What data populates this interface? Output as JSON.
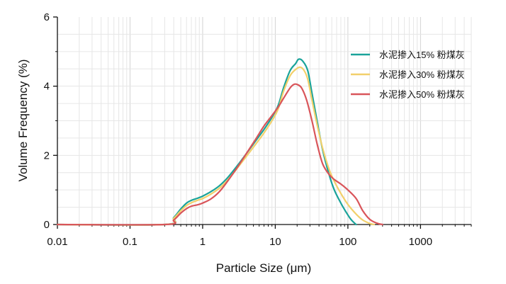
{
  "chart_data": {
    "type": "line",
    "xlabel": "Particle Size (μm)",
    "ylabel": "Volume Frequency (%)",
    "x_scale": "log",
    "xlim": [
      0.01,
      5000
    ],
    "ylim": [
      0,
      6
    ],
    "x_ticks": [
      {
        "value": 0.01,
        "label": "0.01"
      },
      {
        "value": 0.1,
        "label": "0.1"
      },
      {
        "value": 1,
        "label": "1"
      },
      {
        "value": 10,
        "label": "10"
      },
      {
        "value": 100,
        "label": "100"
      },
      {
        "value": 1000,
        "label": "1000"
      }
    ],
    "y_ticks": [
      {
        "value": 0,
        "label": "0"
      },
      {
        "value": 2,
        "label": "2"
      },
      {
        "value": 4,
        "label": "4"
      },
      {
        "value": 6,
        "label": "6"
      }
    ],
    "grid": true,
    "legend_position": "top-right",
    "series": [
      {
        "name": "水泥掺入15% 粉煤灰",
        "color": "#1aa39a",
        "points": [
          [
            0.01,
            0
          ],
          [
            0.3,
            0
          ],
          [
            0.4,
            0.2
          ],
          [
            0.5,
            0.45
          ],
          [
            0.6,
            0.62
          ],
          [
            0.7,
            0.7
          ],
          [
            0.85,
            0.76
          ],
          [
            1,
            0.82
          ],
          [
            1.3,
            0.95
          ],
          [
            1.7,
            1.12
          ],
          [
            2.2,
            1.35
          ],
          [
            3,
            1.7
          ],
          [
            4,
            2.05
          ],
          [
            5.5,
            2.45
          ],
          [
            7,
            2.75
          ],
          [
            9,
            3.1
          ],
          [
            11,
            3.45
          ],
          [
            13,
            3.95
          ],
          [
            16,
            4.45
          ],
          [
            19,
            4.65
          ],
          [
            21,
            4.78
          ],
          [
            24,
            4.72
          ],
          [
            28,
            4.45
          ],
          [
            32,
            3.8
          ],
          [
            38,
            2.95
          ],
          [
            45,
            2.15
          ],
          [
            55,
            1.45
          ],
          [
            65,
            1.0
          ],
          [
            80,
            0.62
          ],
          [
            95,
            0.35
          ],
          [
            110,
            0.15
          ],
          [
            125,
            0.03
          ],
          [
            130,
            0
          ]
        ]
      },
      {
        "name": "水泥掺入30% 粉煤灰",
        "color": "#f2d06b",
        "points": [
          [
            0.01,
            0
          ],
          [
            0.3,
            0
          ],
          [
            0.4,
            0.18
          ],
          [
            0.5,
            0.4
          ],
          [
            0.6,
            0.55
          ],
          [
            0.7,
            0.63
          ],
          [
            0.85,
            0.7
          ],
          [
            1,
            0.75
          ],
          [
            1.3,
            0.88
          ],
          [
            1.7,
            1.05
          ],
          [
            2.2,
            1.28
          ],
          [
            3,
            1.63
          ],
          [
            4,
            1.97
          ],
          [
            5.5,
            2.35
          ],
          [
            7,
            2.65
          ],
          [
            9,
            3.0
          ],
          [
            11,
            3.35
          ],
          [
            13,
            3.85
          ],
          [
            16,
            4.3
          ],
          [
            19,
            4.48
          ],
          [
            22,
            4.55
          ],
          [
            25,
            4.45
          ],
          [
            28,
            4.2
          ],
          [
            32,
            3.6
          ],
          [
            38,
            2.85
          ],
          [
            45,
            2.2
          ],
          [
            55,
            1.6
          ],
          [
            65,
            1.25
          ],
          [
            80,
            0.9
          ],
          [
            100,
            0.58
          ],
          [
            130,
            0.3
          ],
          [
            160,
            0.13
          ],
          [
            200,
            0.03
          ],
          [
            230,
            0
          ]
        ]
      },
      {
        "name": "水泥掺入50% 粉煤灰",
        "color": "#d9555a",
        "points": [
          [
            0.01,
            0
          ],
          [
            0.3,
            0
          ],
          [
            0.4,
            0.13
          ],
          [
            0.5,
            0.33
          ],
          [
            0.6,
            0.46
          ],
          [
            0.7,
            0.53
          ],
          [
            0.85,
            0.57
          ],
          [
            1,
            0.62
          ],
          [
            1.3,
            0.74
          ],
          [
            1.7,
            0.95
          ],
          [
            2.2,
            1.25
          ],
          [
            3,
            1.65
          ],
          [
            4,
            2.05
          ],
          [
            5.5,
            2.5
          ],
          [
            7,
            2.85
          ],
          [
            9,
            3.15
          ],
          [
            11,
            3.4
          ],
          [
            13,
            3.65
          ],
          [
            16,
            3.95
          ],
          [
            18,
            4.05
          ],
          [
            20,
            4.05
          ],
          [
            23,
            3.95
          ],
          [
            27,
            3.6
          ],
          [
            32,
            3.0
          ],
          [
            38,
            2.3
          ],
          [
            45,
            1.75
          ],
          [
            55,
            1.45
          ],
          [
            65,
            1.3
          ],
          [
            80,
            1.17
          ],
          [
            100,
            1.0
          ],
          [
            130,
            0.75
          ],
          [
            160,
            0.4
          ],
          [
            200,
            0.15
          ],
          [
            250,
            0.04
          ],
          [
            300,
            0
          ]
        ]
      }
    ]
  }
}
